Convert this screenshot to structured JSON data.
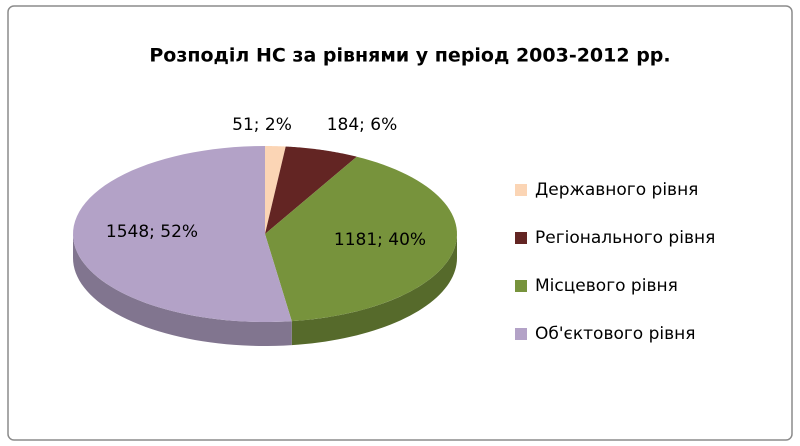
{
  "chart_data": {
    "type": "pie3d",
    "title": "Розподіл НС за рівнями у період 2003-2012 рр.",
    "categories": [
      "Державного рівня",
      "Регіонального рівня",
      "Місцевого рівня",
      "Об'єктового рівня"
    ],
    "series": [
      {
        "values": [
          51,
          184,
          1181,
          1548
        ],
        "value_labels": [
          "51; 2%",
          "184; 6%",
          "1181; 40%",
          "1548; 52%"
        ],
        "colors": [
          "#fbd5b5",
          "#632523",
          "#77933c",
          "#b3a2c7"
        ]
      }
    ],
    "legend": "right"
  }
}
